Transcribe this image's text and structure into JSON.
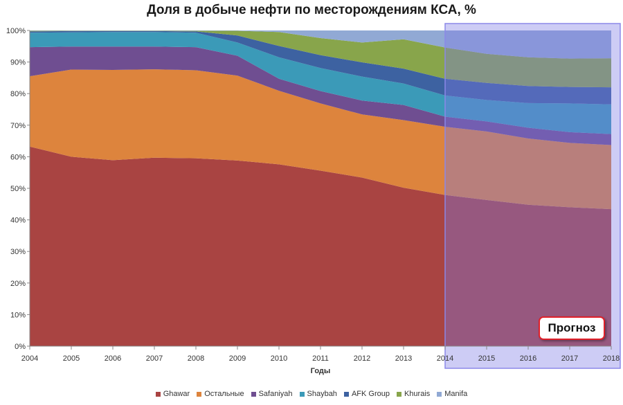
{
  "chart_data": {
    "type": "area",
    "stacked": true,
    "percent": true,
    "title": "Доля в добыче нефти по месторождениям КСА, %",
    "xlabel": "Годы",
    "ylabel": "",
    "ylim": [
      0,
      100
    ],
    "y_ticks": [
      "0%",
      "10%",
      "20%",
      "30%",
      "40%",
      "50%",
      "60%",
      "70%",
      "80%",
      "90%",
      "100%"
    ],
    "x": [
      "2004",
      "2005",
      "2006",
      "2007",
      "2008",
      "2009",
      "2010",
      "2011",
      "2012",
      "2013",
      "2014",
      "2015",
      "2016",
      "2017",
      "2018"
    ],
    "series": [
      {
        "name": "Ghawar",
        "color": "#a94442",
        "values": [
          63.2,
          60.0,
          58.9,
          59.7,
          59.5,
          58.8,
          57.6,
          55.6,
          53.4,
          50.2,
          47.9,
          46.3,
          44.8,
          44.0,
          43.4
        ]
      },
      {
        "name": "Остальные",
        "color": "#dd843d",
        "values": [
          22.3,
          27.6,
          28.6,
          28.0,
          27.9,
          26.9,
          23.3,
          21.3,
          20.0,
          21.4,
          21.6,
          21.7,
          21.0,
          20.4,
          20.3
        ]
      },
      {
        "name": "Safaniyah",
        "color": "#6f4e91",
        "values": [
          9.2,
          7.3,
          7.4,
          7.2,
          7.3,
          6.3,
          3.8,
          3.9,
          4.4,
          4.8,
          3.2,
          3.2,
          3.4,
          3.4,
          3.5
        ]
      },
      {
        "name": "Shaybah",
        "color": "#3b9ab8",
        "values": [
          4.6,
          4.5,
          4.6,
          4.6,
          4.6,
          4.2,
          6.8,
          7.3,
          7.6,
          6.8,
          6.7,
          6.8,
          7.8,
          9.1,
          9.4
        ]
      },
      {
        "name": "AFK Group",
        "color": "#3d62a1",
        "values": [
          0.4,
          0.4,
          0.3,
          0.3,
          0.4,
          2.2,
          3.6,
          4.1,
          4.5,
          4.7,
          5.3,
          5.4,
          5.4,
          5.2,
          5.4
        ]
      },
      {
        "name": "Khurais",
        "color": "#88a54b",
        "values": [
          0.2,
          0.1,
          0.1,
          0.1,
          0.2,
          1.5,
          4.4,
          5.4,
          6.3,
          9.3,
          9.9,
          9.2,
          9.1,
          9.0,
          9.2
        ]
      },
      {
        "name": "Manifa",
        "color": "#91a9d4",
        "values": [
          0.1,
          0.1,
          0.1,
          0.1,
          0.1,
          0.1,
          0.5,
          2.4,
          3.8,
          2.8,
          5.4,
          7.4,
          8.5,
          8.9,
          8.8
        ]
      }
    ],
    "forecast": {
      "label": "Прогноз",
      "from": "2014",
      "to": "2018",
      "shade_color": "#7b78e6",
      "border_color": "#8b88e8"
    },
    "grid": false,
    "legend_position": "bottom"
  }
}
